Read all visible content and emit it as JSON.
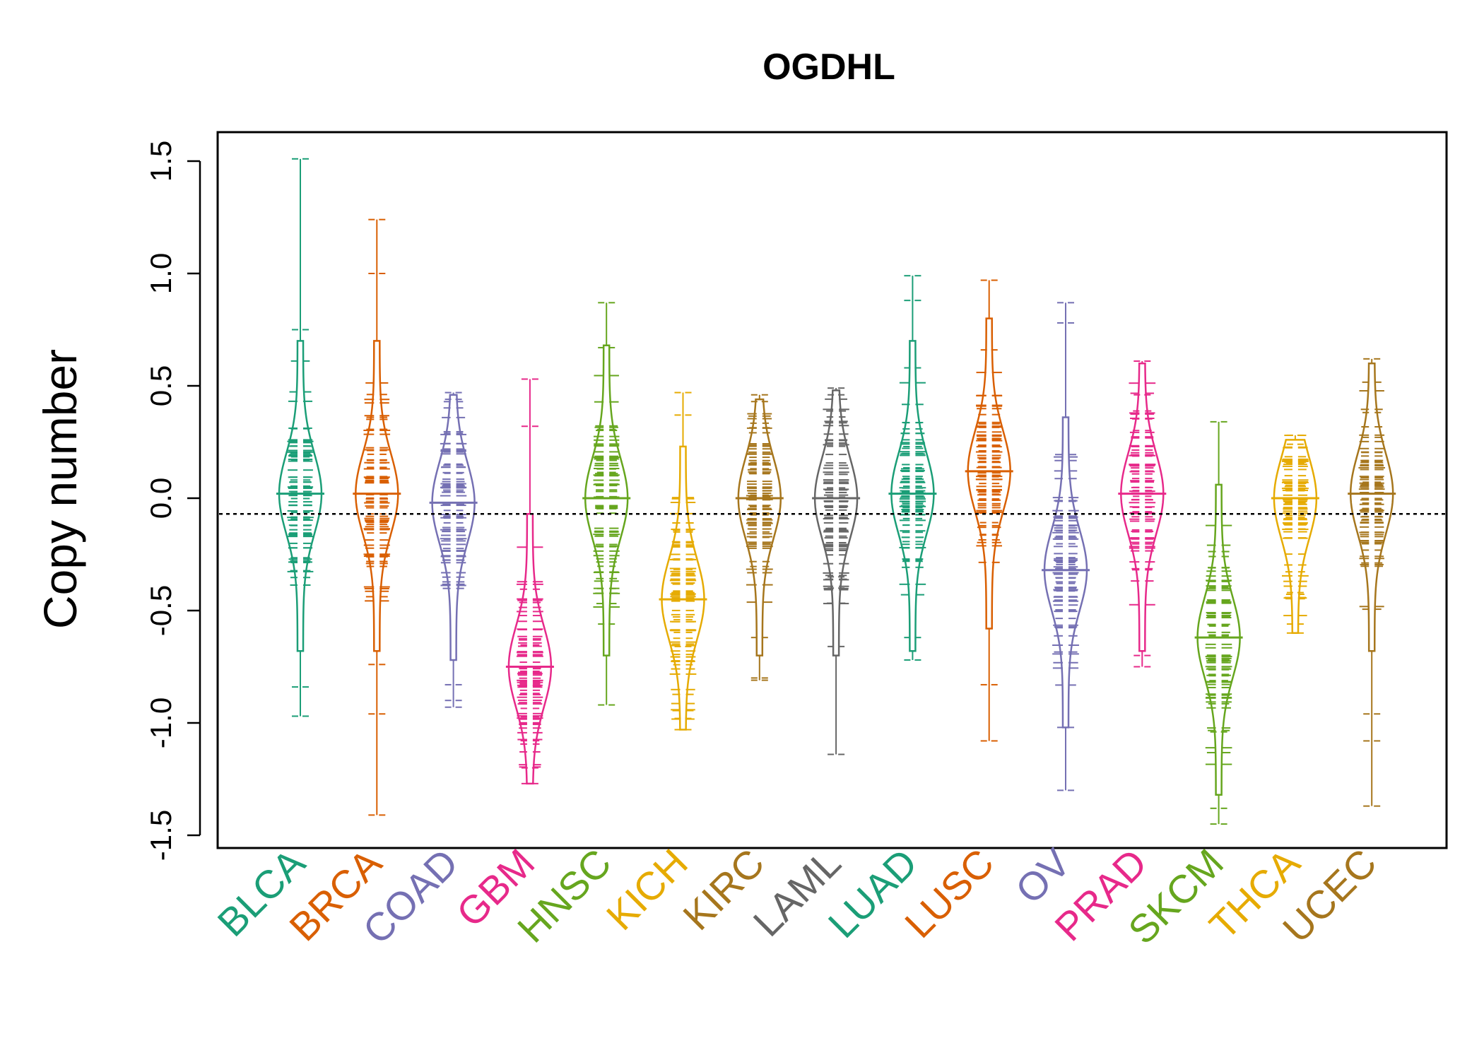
{
  "chart_data": {
    "type": "scatter",
    "subtype": "beanplot",
    "title": "OGDHL",
    "xlabel": "",
    "ylabel": "Copy number",
    "ylim": [
      -1.55,
      1.6
    ],
    "yticks": [
      "-1.5",
      "-1.0",
      "-0.5",
      "0.0",
      "0.5",
      "1.0",
      "1.5"
    ],
    "reference_line": -0.07,
    "categories": [
      "BLCA",
      "BRCA",
      "COAD",
      "GBM",
      "HNSC",
      "KICH",
      "KIRC",
      "LAML",
      "LUAD",
      "LUSC",
      "OV",
      "PRAD",
      "SKCM",
      "THCA",
      "UCEC"
    ],
    "colors": [
      "#1B9E77",
      "#D95F02",
      "#7570B3",
      "#E7298A",
      "#66A61E",
      "#E6AB02",
      "#A6761D",
      "#666666",
      "#1B9E77",
      "#D95F02",
      "#7570B3",
      "#E7298A",
      "#66A61E",
      "#E6AB02",
      "#A6761D"
    ],
    "series": [
      {
        "name": "BLCA",
        "min": -0.97,
        "max": 1.51,
        "median": 0.02,
        "outliers": [
          1.51,
          0.75,
          -0.84,
          -0.97
        ]
      },
      {
        "name": "BRCA",
        "min": -1.41,
        "max": 1.24,
        "median": 0.02,
        "outliers": [
          1.24,
          1.0,
          -0.74,
          -0.96,
          -1.41
        ]
      },
      {
        "name": "COAD",
        "min": -0.93,
        "max": 0.47,
        "median": -0.02,
        "outliers": [
          0.47,
          0.44,
          -0.83,
          -0.9,
          -0.93
        ]
      },
      {
        "name": "GBM",
        "min": -1.27,
        "max": 0.53,
        "median": -0.75,
        "outliers": [
          0.53,
          0.32,
          -1.2,
          -1.27
        ]
      },
      {
        "name": "HNSC",
        "min": -0.92,
        "max": 0.87,
        "median": 0.0,
        "outliers": [
          0.87,
          0.67,
          -0.56,
          -0.92
        ]
      },
      {
        "name": "KICH",
        "min": -1.03,
        "max": 0.47,
        "median": -0.45,
        "outliers": [
          0.47,
          0.37,
          -0.66,
          -0.98,
          -1.03
        ]
      },
      {
        "name": "KIRC",
        "min": -0.81,
        "max": 0.46,
        "median": 0.0,
        "outliers": [
          0.46,
          0.43,
          -0.62,
          -0.8,
          -0.81
        ]
      },
      {
        "name": "LAML",
        "min": -1.14,
        "max": 0.49,
        "median": 0.0,
        "outliers": [
          0.49,
          0.46,
          -0.35,
          -0.4,
          -0.66,
          -1.14
        ]
      },
      {
        "name": "LUAD",
        "min": -0.72,
        "max": 0.99,
        "median": 0.02,
        "outliers": [
          0.99,
          0.88,
          0.58,
          -0.62,
          -0.72
        ]
      },
      {
        "name": "LUSC",
        "min": -1.08,
        "max": 0.97,
        "median": 0.12,
        "outliers": [
          0.97,
          0.66,
          -0.83,
          -1.08
        ]
      },
      {
        "name": "OV",
        "min": -1.3,
        "max": 0.87,
        "median": -0.32,
        "outliers": [
          0.87,
          0.78,
          -1.02,
          -1.3
        ]
      },
      {
        "name": "PRAD",
        "min": -0.75,
        "max": 0.61,
        "median": 0.02,
        "outliers": [
          0.61,
          0.46,
          -0.7,
          -0.75
        ]
      },
      {
        "name": "SKCM",
        "min": -1.45,
        "max": 0.34,
        "median": -0.62,
        "outliers": [
          0.34,
          -1.04,
          -1.38,
          -1.45
        ]
      },
      {
        "name": "THCA",
        "min": -0.6,
        "max": 0.28,
        "median": 0.0,
        "outliers": [
          0.28,
          0.24,
          -0.42,
          -0.56,
          -0.6
        ]
      },
      {
        "name": "UCEC",
        "min": -1.37,
        "max": 0.62,
        "median": 0.02,
        "outliers": [
          0.62,
          -0.96,
          -1.08,
          -1.37
        ]
      }
    ]
  }
}
